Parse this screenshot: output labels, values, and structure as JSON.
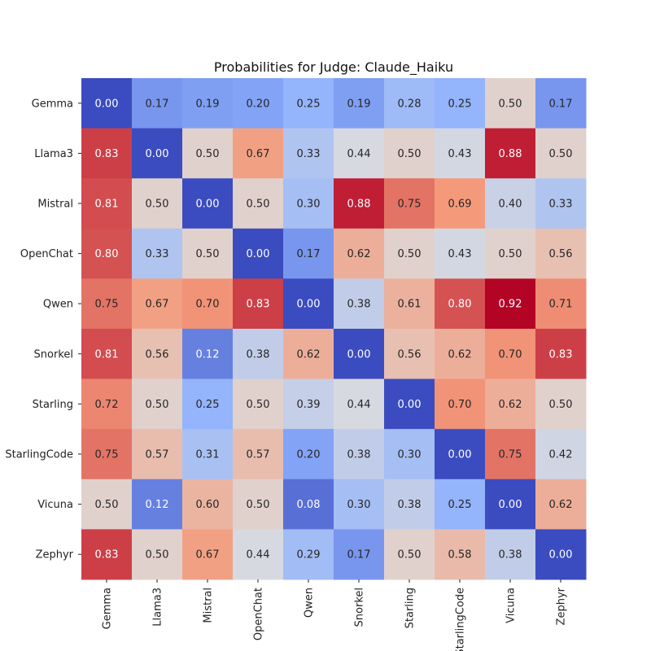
{
  "chart_data": {
    "type": "heatmap",
    "title": "Probabilities for Judge: Claude_Haiku",
    "rows": [
      "Gemma",
      "Llama3",
      "Mistral",
      "OpenChat",
      "Qwen",
      "Snorkel",
      "Starling",
      "StarlingCode",
      "Vicuna",
      "Zephyr"
    ],
    "columns": [
      "Gemma",
      "Llama3",
      "Mistral",
      "OpenChat",
      "Qwen",
      "Snorkel",
      "Starling",
      "StarlingCode",
      "Vicuna",
      "Zephyr"
    ],
    "values": [
      [
        0.0,
        0.17,
        0.19,
        0.2,
        0.25,
        0.19,
        0.28,
        0.25,
        0.5,
        0.17
      ],
      [
        0.83,
        0.0,
        0.5,
        0.67,
        0.33,
        0.44,
        0.5,
        0.43,
        0.88,
        0.5
      ],
      [
        0.81,
        0.5,
        0.0,
        0.5,
        0.3,
        0.88,
        0.75,
        0.69,
        0.4,
        0.33
      ],
      [
        0.8,
        0.33,
        0.5,
        0.0,
        0.17,
        0.62,
        0.5,
        0.43,
        0.5,
        0.56
      ],
      [
        0.75,
        0.67,
        0.7,
        0.83,
        0.0,
        0.38,
        0.61,
        0.8,
        0.92,
        0.71
      ],
      [
        0.81,
        0.56,
        0.12,
        0.38,
        0.62,
        0.0,
        0.56,
        0.62,
        0.7,
        0.83
      ],
      [
        0.72,
        0.5,
        0.25,
        0.5,
        0.39,
        0.44,
        0.0,
        0.7,
        0.62,
        0.5
      ],
      [
        0.75,
        0.57,
        0.31,
        0.57,
        0.2,
        0.38,
        0.3,
        0.0,
        0.75,
        0.42
      ],
      [
        0.5,
        0.12,
        0.6,
        0.5,
        0.08,
        0.3,
        0.38,
        0.25,
        0.0,
        0.62
      ],
      [
        0.83,
        0.5,
        0.67,
        0.44,
        0.29,
        0.17,
        0.5,
        0.58,
        0.38,
        0.0
      ]
    ],
    "colormap": "coolwarm",
    "annotation_format": "0.00",
    "colorbar": false
  }
}
